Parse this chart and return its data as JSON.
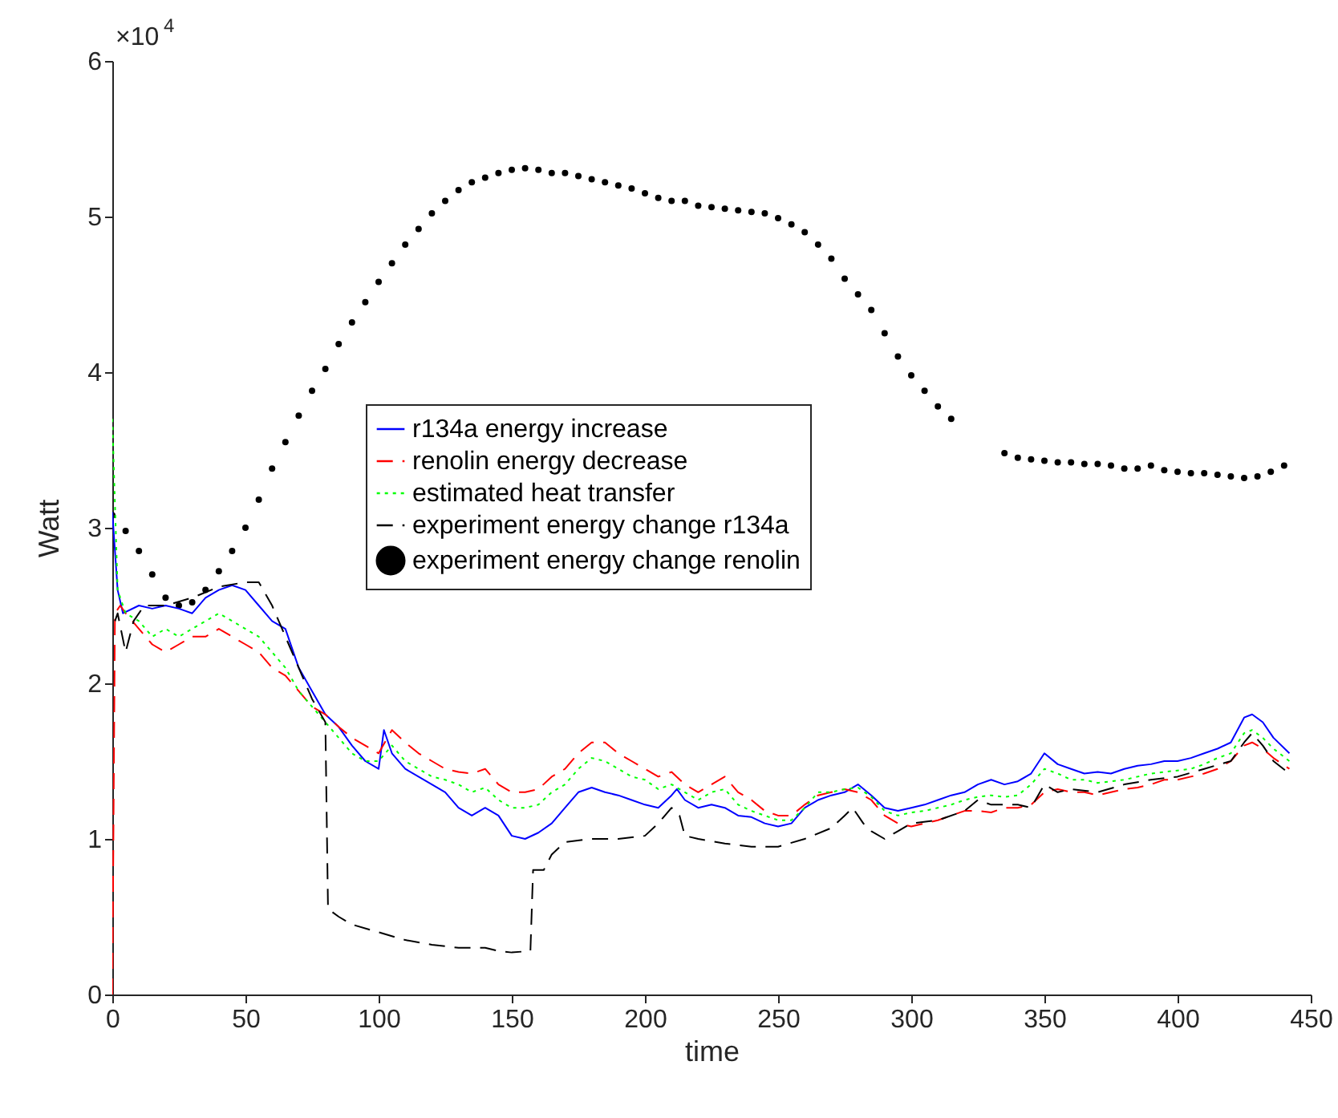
{
  "chart_data": {
    "type": "line",
    "xlabel": "time",
    "ylabel": "Watt",
    "annotations": [
      "×10$^{4}$"
    ],
    "xlim": [
      0,
      450
    ],
    "xticks": [
      0,
      50,
      100,
      150,
      200,
      250,
      300,
      350,
      400,
      450
    ],
    "ylim": [
      0,
      6
    ],
    "yticks": [
      {
        "value": 0,
        "label": "0"
      },
      {
        "value": 1,
        "label": "1"
      },
      {
        "value": 2,
        "label": "2"
      },
      {
        "value": 3,
        "label": "3"
      },
      {
        "value": 4,
        "label": "4"
      },
      {
        "value": 5,
        "label": "5"
      },
      {
        "value": 6,
        "label": "6"
      }
    ],
    "grid": false,
    "legend": "center",
    "series": [
      {
        "name": "r134a energy increase",
        "line_style": "solid",
        "color": "#0000ff",
        "x": [
          0,
          2,
          4,
          10,
          15,
          20,
          25,
          30,
          35,
          40,
          45,
          50,
          55,
          60,
          65,
          70,
          75,
          80,
          85,
          90,
          95,
          100,
          102,
          105,
          110,
          120,
          125,
          130,
          135,
          140,
          145,
          150,
          155,
          160,
          165,
          170,
          175,
          180,
          185,
          190,
          195,
          200,
          205,
          210,
          212,
          215,
          220,
          225,
          230,
          235,
          240,
          245,
          250,
          255,
          260,
          265,
          270,
          275,
          280,
          285,
          290,
          295,
          300,
          305,
          310,
          315,
          320,
          325,
          330,
          335,
          340,
          345,
          350,
          355,
          360,
          365,
          370,
          375,
          380,
          385,
          390,
          395,
          400,
          405,
          410,
          415,
          420,
          425,
          428,
          432,
          436,
          442
        ],
        "values": [
          3.1,
          2.6,
          2.45,
          2.5,
          2.48,
          2.5,
          2.48,
          2.45,
          2.55,
          2.6,
          2.63,
          2.6,
          2.5,
          2.4,
          2.35,
          2.1,
          1.95,
          1.8,
          1.72,
          1.6,
          1.5,
          1.45,
          1.7,
          1.55,
          1.45,
          1.35,
          1.3,
          1.2,
          1.15,
          1.2,
          1.15,
          1.02,
          1.0,
          1.04,
          1.1,
          1.2,
          1.3,
          1.33,
          1.3,
          1.28,
          1.25,
          1.22,
          1.2,
          1.28,
          1.32,
          1.25,
          1.2,
          1.22,
          1.2,
          1.15,
          1.14,
          1.1,
          1.08,
          1.1,
          1.2,
          1.25,
          1.28,
          1.3,
          1.35,
          1.28,
          1.2,
          1.18,
          1.2,
          1.22,
          1.25,
          1.28,
          1.3,
          1.35,
          1.38,
          1.35,
          1.37,
          1.42,
          1.55,
          1.48,
          1.45,
          1.42,
          1.43,
          1.42,
          1.45,
          1.47,
          1.48,
          1.5,
          1.5,
          1.52,
          1.55,
          1.58,
          1.62,
          1.78,
          1.8,
          1.75,
          1.65,
          1.55
        ]
      },
      {
        "name": "renolin energy decrease",
        "line_style": "dashed",
        "color": "#ff0000",
        "x": [
          0,
          1,
          3,
          5,
          10,
          15,
          20,
          25,
          30,
          35,
          40,
          45,
          50,
          55,
          60,
          65,
          70,
          75,
          80,
          85,
          90,
          95,
          100,
          105,
          110,
          115,
          120,
          125,
          130,
          135,
          140,
          145,
          150,
          155,
          160,
          165,
          170,
          175,
          180,
          185,
          190,
          195,
          200,
          205,
          210,
          215,
          220,
          225,
          230,
          235,
          240,
          245,
          250,
          255,
          260,
          265,
          270,
          275,
          280,
          285,
          290,
          295,
          300,
          305,
          310,
          315,
          320,
          325,
          330,
          335,
          340,
          345,
          350,
          355,
          360,
          365,
          370,
          375,
          380,
          385,
          390,
          395,
          400,
          405,
          410,
          415,
          420,
          425,
          428,
          432,
          436,
          442
        ],
        "values": [
          0,
          2.45,
          2.5,
          2.45,
          2.35,
          2.25,
          2.2,
          2.25,
          2.3,
          2.3,
          2.35,
          2.3,
          2.25,
          2.2,
          2.1,
          2.05,
          1.95,
          1.85,
          1.8,
          1.72,
          1.65,
          1.6,
          1.55,
          1.7,
          1.62,
          1.55,
          1.5,
          1.45,
          1.43,
          1.42,
          1.45,
          1.35,
          1.3,
          1.3,
          1.32,
          1.4,
          1.45,
          1.55,
          1.62,
          1.62,
          1.55,
          1.5,
          1.45,
          1.4,
          1.43,
          1.35,
          1.3,
          1.35,
          1.4,
          1.3,
          1.25,
          1.18,
          1.15,
          1.15,
          1.22,
          1.28,
          1.3,
          1.32,
          1.3,
          1.25,
          1.15,
          1.1,
          1.08,
          1.1,
          1.12,
          1.15,
          1.18,
          1.18,
          1.17,
          1.2,
          1.2,
          1.22,
          1.3,
          1.32,
          1.3,
          1.3,
          1.28,
          1.3,
          1.32,
          1.33,
          1.35,
          1.38,
          1.38,
          1.4,
          1.42,
          1.45,
          1.5,
          1.6,
          1.62,
          1.58,
          1.52,
          1.45
        ]
      },
      {
        "name": "estimated heat transfer",
        "line_style": "dotted",
        "color": "#00ff00",
        "x": [
          0,
          2,
          5,
          10,
          15,
          20,
          25,
          30,
          35,
          40,
          45,
          50,
          55,
          60,
          65,
          70,
          75,
          80,
          85,
          90,
          95,
          100,
          105,
          110,
          115,
          120,
          125,
          130,
          135,
          140,
          145,
          150,
          155,
          160,
          165,
          170,
          175,
          180,
          185,
          190,
          195,
          200,
          205,
          210,
          215,
          220,
          225,
          230,
          235,
          240,
          245,
          250,
          255,
          260,
          265,
          270,
          275,
          280,
          285,
          290,
          295,
          300,
          305,
          310,
          315,
          320,
          325,
          330,
          335,
          340,
          345,
          350,
          355,
          360,
          365,
          370,
          375,
          380,
          385,
          390,
          395,
          400,
          405,
          410,
          415,
          420,
          425,
          428,
          432,
          436,
          442
        ],
        "values": [
          3.7,
          2.6,
          2.45,
          2.4,
          2.3,
          2.35,
          2.3,
          2.35,
          2.4,
          2.45,
          2.4,
          2.35,
          2.3,
          2.2,
          2.1,
          1.95,
          1.85,
          1.75,
          1.65,
          1.55,
          1.5,
          1.5,
          1.6,
          1.5,
          1.45,
          1.4,
          1.38,
          1.35,
          1.3,
          1.33,
          1.25,
          1.2,
          1.2,
          1.22,
          1.3,
          1.35,
          1.45,
          1.52,
          1.5,
          1.45,
          1.4,
          1.38,
          1.32,
          1.35,
          1.3,
          1.25,
          1.3,
          1.32,
          1.22,
          1.18,
          1.15,
          1.12,
          1.12,
          1.2,
          1.3,
          1.3,
          1.32,
          1.33,
          1.27,
          1.18,
          1.15,
          1.17,
          1.18,
          1.2,
          1.22,
          1.25,
          1.27,
          1.28,
          1.27,
          1.28,
          1.35,
          1.45,
          1.42,
          1.38,
          1.38,
          1.36,
          1.37,
          1.38,
          1.4,
          1.42,
          1.43,
          1.44,
          1.45,
          1.48,
          1.52,
          1.55,
          1.68,
          1.7,
          1.65,
          1.58,
          1.5
        ]
      },
      {
        "name": "experiment energy change r134a",
        "line_style": "dashed",
        "color": "#000000",
        "x": [
          1,
          2,
          5,
          8,
          12,
          20,
          30,
          40,
          50,
          55,
          60,
          65,
          70,
          75,
          80,
          81,
          85,
          90,
          100,
          110,
          120,
          130,
          140,
          145,
          150,
          157,
          158,
          162,
          165,
          170,
          180,
          190,
          200,
          205,
          210,
          213,
          215,
          220,
          230,
          240,
          250,
          260,
          270,
          275,
          278,
          282,
          285,
          290,
          295,
          300,
          310,
          320,
          325,
          330,
          340,
          345,
          350,
          355,
          360,
          370,
          380,
          390,
          400,
          410,
          420,
          425,
          428,
          432,
          436,
          442
        ],
        "values": [
          2.4,
          2.45,
          2.2,
          2.4,
          2.5,
          2.5,
          2.55,
          2.62,
          2.65,
          2.65,
          2.5,
          2.3,
          2.1,
          1.9,
          1.75,
          0.55,
          0.5,
          0.45,
          0.4,
          0.35,
          0.32,
          0.3,
          0.3,
          0.28,
          0.27,
          0.28,
          0.8,
          0.8,
          0.9,
          0.98,
          1.0,
          1.0,
          1.02,
          1.1,
          1.2,
          1.15,
          1.02,
          1.0,
          0.97,
          0.95,
          0.95,
          1.0,
          1.07,
          1.15,
          1.2,
          1.1,
          1.05,
          1.0,
          1.05,
          1.1,
          1.12,
          1.18,
          1.25,
          1.22,
          1.22,
          1.2,
          1.35,
          1.3,
          1.32,
          1.3,
          1.35,
          1.38,
          1.4,
          1.45,
          1.5,
          1.62,
          1.68,
          1.6,
          1.5,
          1.42
        ]
      },
      {
        "name": "experiment energy change renolin",
        "type": "scatter",
        "marker": "circle",
        "color": "#000000",
        "x": [
          0,
          5,
          10,
          15,
          20,
          25,
          30,
          35,
          40,
          45,
          50,
          55,
          60,
          65,
          70,
          75,
          80,
          85,
          90,
          95,
          100,
          105,
          110,
          115,
          120,
          125,
          130,
          135,
          140,
          145,
          150,
          155,
          160,
          165,
          170,
          175,
          180,
          185,
          190,
          195,
          200,
          205,
          210,
          215,
          220,
          225,
          230,
          235,
          240,
          245,
          250,
          255,
          260,
          265,
          270,
          275,
          280,
          285,
          290,
          295,
          300,
          305,
          310,
          315,
          320,
          325,
          330,
          335,
          340,
          345,
          350,
          355,
          360,
          365,
          370,
          375,
          380,
          385,
          390,
          395,
          400,
          405,
          410,
          415,
          420,
          425,
          430,
          435,
          440
        ],
        "values": [
          3.08,
          2.98,
          2.85,
          2.7,
          2.55,
          2.5,
          2.52,
          2.6,
          2.72,
          2.85,
          3.0,
          3.18,
          3.38,
          3.55,
          3.72,
          3.88,
          4.02,
          4.18,
          4.32,
          4.45,
          4.58,
          4.7,
          4.82,
          4.92,
          5.02,
          5.1,
          5.17,
          5.22,
          5.25,
          5.28,
          5.3,
          5.31,
          5.3,
          5.28,
          5.28,
          5.26,
          5.24,
          5.22,
          5.2,
          5.18,
          5.15,
          5.12,
          5.1,
          5.1,
          5.07,
          5.06,
          5.05,
          5.04,
          5.03,
          5.02,
          4.99,
          4.95,
          4.9,
          4.82,
          4.73,
          4.6,
          4.5,
          4.4,
          4.25,
          4.1,
          3.98,
          3.88,
          3.78,
          3.7,
          null,
          null,
          null,
          3.48,
          3.45,
          3.44,
          3.43,
          3.42,
          3.42,
          3.41,
          3.41,
          3.4,
          3.38,
          3.38,
          3.4,
          3.37,
          3.36,
          3.35,
          3.35,
          3.34,
          3.33,
          3.32,
          3.33,
          3.36,
          3.4
        ]
      }
    ]
  }
}
